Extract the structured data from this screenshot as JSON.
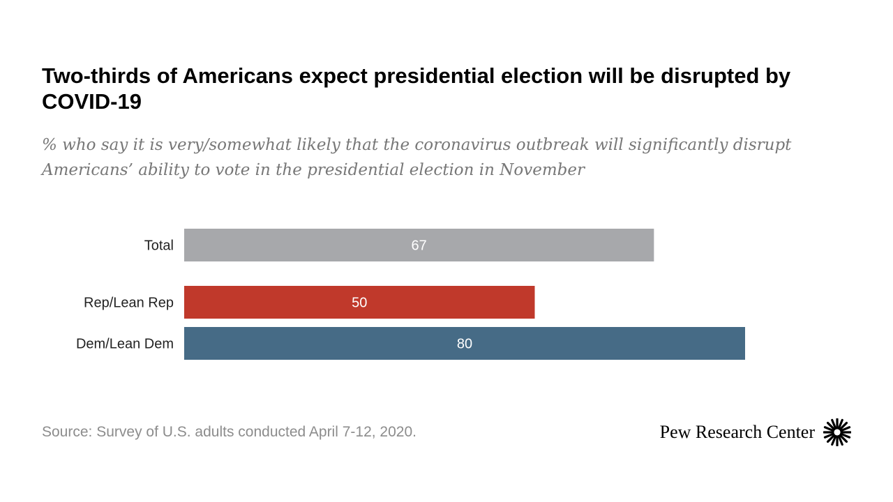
{
  "title": "Two-thirds of Americans expect presidential election will be disrupted by COVID-19",
  "subtitle": "% who say it is very/somewhat likely that the coronavirus outbreak will significantly disrupt Americans’ ability to vote in the presidential election in November",
  "source": "Source: Survey of U.S. adults conducted April 7-12, 2020.",
  "brand": {
    "name": "Pew Research Center",
    "logo_icon": "pew-sunburst-icon"
  },
  "chart_data": {
    "type": "bar",
    "orientation": "horizontal",
    "title": "Two-thirds of Americans expect presidential election will be disrupted by COVID-19",
    "subtitle": "% who say it is very/somewhat likely that the coronavirus outbreak will significantly disrupt Americans’ ability to vote in the presidential election in November",
    "xlabel": "",
    "ylabel": "",
    "xlim": [
      0,
      100
    ],
    "grid": false,
    "legend": "none",
    "categories": [
      "Total",
      "Rep/Lean Rep",
      "Dem/Lean Dem"
    ],
    "values": [
      67,
      50,
      80
    ],
    "colors": [
      "#a7a8ab",
      "#c0392b",
      "#466b86"
    ],
    "data_label_color": "#ffffff",
    "axis_label_color": "#222222"
  }
}
